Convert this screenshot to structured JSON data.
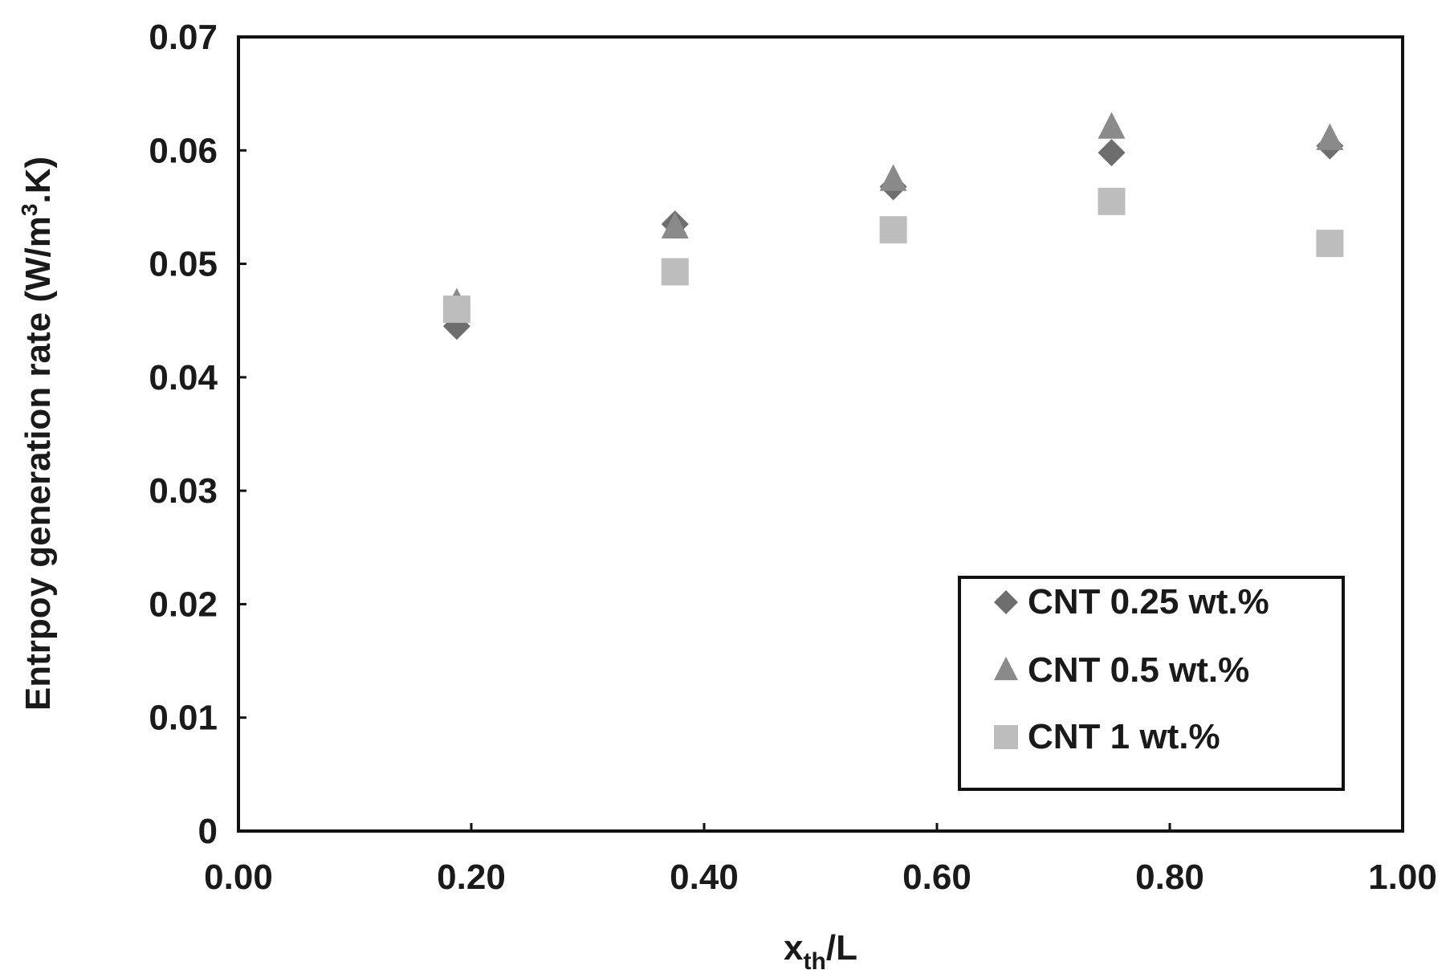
{
  "chart_data": {
    "type": "scatter",
    "title": "",
    "xlabel": {
      "main": "x",
      "sub": "th",
      "rest": "/L"
    },
    "ylabel": {
      "before": "Entrpoy generation rate (W/m",
      "sup": "3",
      "after": ".K)"
    },
    "xlim": [
      0,
      1
    ],
    "ylim": [
      0,
      0.07
    ],
    "x_ticks": [
      "0.00",
      "0.20",
      "0.40",
      "0.60",
      "0.80",
      "1.00"
    ],
    "y_ticks": [
      "0",
      "0.01",
      "0.02",
      "0.03",
      "0.04",
      "0.05",
      "0.06",
      "0.07"
    ],
    "grid": false,
    "legend_position": "bottom-right",
    "series": [
      {
        "name": "CNT 0.25 wt.%",
        "marker": "diamond",
        "color": "#6e6e6e",
        "points": [
          {
            "x": 0.1875,
            "y": 0.0445
          },
          {
            "x": 0.375,
            "y": 0.0535
          },
          {
            "x": 0.5625,
            "y": 0.0568
          },
          {
            "x": 0.75,
            "y": 0.0598
          },
          {
            "x": 0.9375,
            "y": 0.0604
          }
        ]
      },
      {
        "name": "CNT 0.5 wt.%",
        "marker": "triangle",
        "color": "#8a8a8a",
        "points": [
          {
            "x": 0.1875,
            "y": 0.0465
          },
          {
            "x": 0.375,
            "y": 0.0532
          },
          {
            "x": 0.5625,
            "y": 0.0574
          },
          {
            "x": 0.75,
            "y": 0.062
          },
          {
            "x": 0.9375,
            "y": 0.061
          }
        ]
      },
      {
        "name": "CNT 1 wt.%",
        "marker": "square",
        "color": "#bdbdbd",
        "points": [
          {
            "x": 0.1875,
            "y": 0.046
          },
          {
            "x": 0.375,
            "y": 0.0493
          },
          {
            "x": 0.5625,
            "y": 0.053
          },
          {
            "x": 0.75,
            "y": 0.0555
          },
          {
            "x": 0.9375,
            "y": 0.0518
          }
        ]
      }
    ]
  }
}
